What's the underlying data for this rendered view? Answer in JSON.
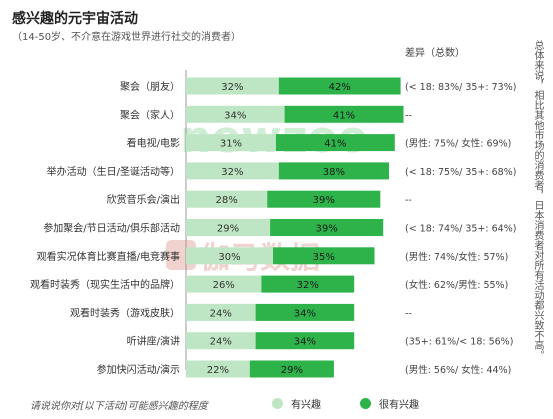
{
  "header": {
    "title": "感兴趣的元宇宙活动",
    "subtitle": "（14-50岁、不介意在游戏世界进行社交的消费者）",
    "diff_header": "差异（总数）"
  },
  "side_note": "总体来说，相比其他市场的消费者，日本消费者对所有活动都兴致不高。",
  "footer": {
    "question": "请说说你对[以下活动]可能感兴趣的程度"
  },
  "watermark": "伽马数据 GAMMA DATA newzoo",
  "colors": {
    "some_interest": "#bfe6c4",
    "very_interested": "#2db34a",
    "text": "#333333"
  },
  "chart_data": {
    "type": "bar",
    "stacked": true,
    "orientation": "horizontal",
    "title": "感兴趣的元宇宙活动",
    "categories": [
      "聚会（朋友）",
      "聚会（家人）",
      "看电视/电影",
      "举办活动（生日/圣诞活动等）",
      "欣赏音乐会/演出",
      "参加聚会/节日活动/俱乐部活动",
      "观看实况体育比赛直播/电竞赛事",
      "观看时装秀（现实生活中的品牌）",
      "观看时装秀（游戏皮肤）",
      "听讲座/演讲",
      "参加快闪活动/演示"
    ],
    "series": [
      {
        "name": "有兴趣",
        "values": [
          32,
          34,
          31,
          32,
          28,
          29,
          30,
          26,
          24,
          24,
          22
        ]
      },
      {
        "name": "很有兴趣",
        "values": [
          42,
          41,
          41,
          38,
          39,
          39,
          35,
          32,
          34,
          34,
          29
        ]
      }
    ],
    "differences": [
      "(< 18: 83%/ 35+: 73%)",
      "--",
      "(男性: 75%/ 女性: 69%)",
      "(< 18: 75%/ 35+: 68%)",
      "--",
      "(< 18: 74%/ 35+: 64%)",
      "(男性: 74%/女性: 57%)",
      "(女性: 62%/男性: 55%)",
      "--",
      "(35+: 61%/< 18: 56%)",
      "(男性: 56%/ 女性: 44%)"
    ],
    "value_suffix": "%",
    "legend_position": "bottom"
  }
}
